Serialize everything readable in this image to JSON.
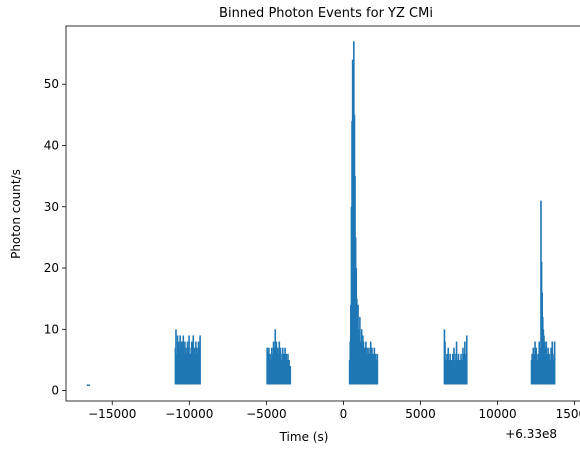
{
  "chart_data": {
    "type": "bar",
    "title": "Binned Photon Events for YZ CMi",
    "xlabel": "Time (s)",
    "ylabel": "Photon count/s",
    "x_offset_label": "+6.33e8",
    "xlim": [
      -18000,
      15800
    ],
    "ylim": [
      -1.7,
      59.5
    ],
    "xticks": [
      -15000,
      -10000,
      -5000,
      0,
      5000,
      10000,
      15000
    ],
    "xtick_labels": [
      "−15000",
      "−10000",
      "−5000",
      "0",
      "5000",
      "10000",
      "15000"
    ],
    "yticks": [
      0,
      10,
      20,
      30,
      40,
      50
    ],
    "ytick_labels": [
      "0",
      "10",
      "20",
      "30",
      "40",
      "50"
    ],
    "grid": false,
    "color": "#1f77b4",
    "segments": [
      {
        "name": "segment-1",
        "x_start": -16600,
        "x_end": -16500,
        "counts": [
          1,
          1
        ]
      },
      {
        "name": "segment-2",
        "x_start": -10900,
        "x_end": -9300,
        "counts": [
          7,
          10,
          3,
          6,
          9,
          5,
          8,
          4,
          7,
          9,
          6,
          3,
          8,
          5,
          7,
          9,
          4,
          6,
          8,
          3,
          7,
          5,
          6,
          8,
          4,
          7,
          9,
          5,
          6,
          4,
          7,
          8,
          3,
          6,
          9,
          5,
          7,
          4,
          6,
          8,
          5,
          7,
          3,
          6,
          8,
          4,
          7,
          9
        ]
      },
      {
        "name": "segment-3",
        "x_start": -4950,
        "x_end": -3450,
        "counts": [
          7,
          5,
          6,
          7,
          4,
          6,
          3,
          5,
          7,
          4,
          6,
          8,
          5,
          7,
          10,
          6,
          8,
          4,
          7,
          5,
          6,
          8,
          4,
          7,
          5,
          3,
          6,
          7,
          4,
          6,
          5,
          7,
          4,
          6,
          3,
          5,
          6,
          4,
          5,
          3,
          4
        ]
      },
      {
        "name": "segment-4",
        "x_start": 400,
        "x_end": 2200,
        "counts": [
          5,
          8,
          14,
          30,
          44,
          54,
          50,
          57,
          45,
          35,
          25,
          20,
          15,
          12,
          14,
          10,
          9,
          12,
          8,
          7,
          10,
          6,
          9,
          8,
          5,
          7,
          6,
          8,
          5,
          7,
          6,
          4,
          7,
          5,
          6,
          8,
          5,
          7,
          4,
          6,
          5,
          7,
          3,
          6,
          5,
          4,
          6
        ]
      },
      {
        "name": "segment-5",
        "x_start": 6550,
        "x_end": 8000,
        "counts": [
          10,
          8,
          5,
          3,
          6,
          4,
          7,
          5,
          3,
          6,
          4,
          5,
          3,
          6,
          4,
          7,
          5,
          3,
          6,
          8,
          5,
          4,
          6,
          3,
          5,
          4,
          6,
          3,
          5,
          7,
          4,
          6,
          8,
          5,
          6,
          9
        ]
      },
      {
        "name": "segment-6",
        "x_start": 12200,
        "x_end": 13700,
        "counts": [
          5,
          6,
          4,
          7,
          5,
          6,
          8,
          5,
          7,
          6,
          5,
          4,
          6,
          8,
          5,
          7,
          31,
          21,
          16,
          12,
          10,
          9,
          8,
          7,
          6,
          8,
          5,
          6,
          7,
          5,
          6,
          4,
          5,
          7,
          6,
          8,
          5,
          4,
          6,
          8
        ]
      }
    ]
  }
}
